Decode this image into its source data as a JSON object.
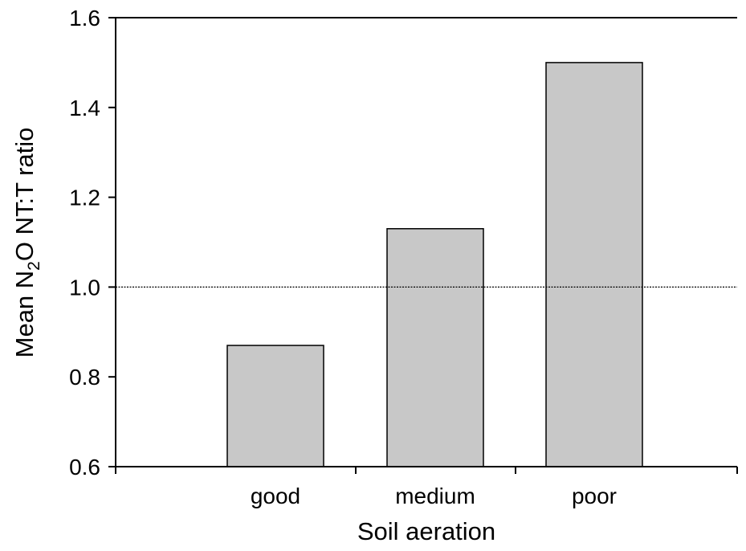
{
  "chart_data": {
    "type": "bar",
    "categories": [
      "good",
      "medium",
      "poor"
    ],
    "values": [
      0.87,
      1.13,
      1.5
    ],
    "title": "",
    "xlabel": "Soil aeration",
    "ylabel_parts": {
      "pre": "Mean N",
      "sub": "2",
      "post": "O NT:T ratio"
    },
    "ylim": [
      0.6,
      1.6
    ],
    "yticks": [
      "0.6",
      "0.8",
      "1.0",
      "1.2",
      "1.4",
      "1.6"
    ],
    "reference_line": 1.0,
    "grid": false,
    "bar_color": "#c8c8c8",
    "legend": "none"
  }
}
